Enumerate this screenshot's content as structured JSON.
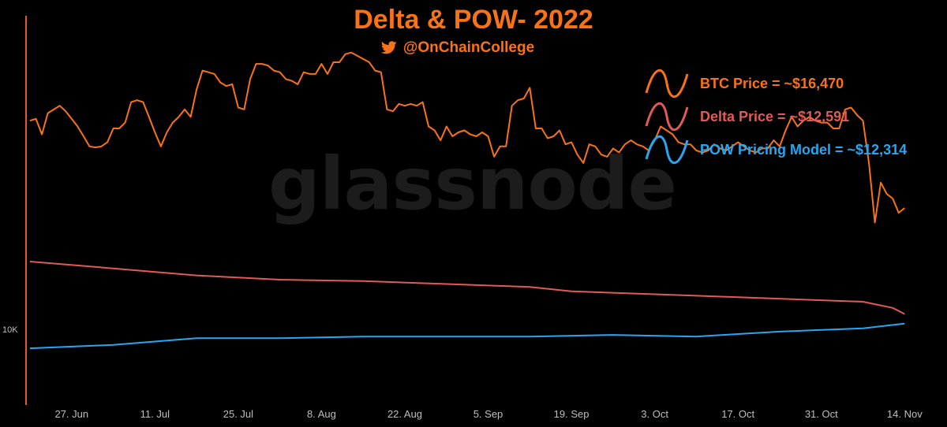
{
  "header": {
    "title": "Delta & POW- 2022",
    "handle": "@OnChainCollege"
  },
  "watermark": "glassnode",
  "legend": [
    {
      "label": "BTC Price = ~$16,470",
      "color": "#f97316"
    },
    {
      "label": "Delta Price = ~$12,591",
      "color": "#e05a57"
    },
    {
      "label": "POW Pricing Model = ~$12,314",
      "color": "#26a7f0"
    }
  ],
  "chart_data": {
    "type": "line",
    "title": "Delta & POW- 2022",
    "xlabel": "",
    "ylabel": "",
    "x_ticks": [
      "27. Jun",
      "11. Jul",
      "25. Jul",
      "8. Aug",
      "22. Aug",
      "5. Sep",
      "19. Sep",
      "3. Oct",
      "17. Oct",
      "31. Oct",
      "14. Nov"
    ],
    "y_ticks": [
      "10K"
    ],
    "y_scale": "log",
    "ylim": [
      10000,
      28000
    ],
    "x_range": [
      "2022-06-20",
      "2022-11-19"
    ],
    "grid": false,
    "legend_position": "top-right",
    "series": [
      {
        "name": "BTC Price",
        "color": "#f97316",
        "points": [
          [
            "2022-06-20",
            20600
          ],
          [
            "2022-06-21",
            20700
          ],
          [
            "2022-06-22",
            19900
          ],
          [
            "2022-06-23",
            21000
          ],
          [
            "2022-06-24",
            21200
          ],
          [
            "2022-06-25",
            21400
          ],
          [
            "2022-06-26",
            21100
          ],
          [
            "2022-06-27",
            20700
          ],
          [
            "2022-06-28",
            20300
          ],
          [
            "2022-06-29",
            19800
          ],
          [
            "2022-06-30",
            19300
          ],
          [
            "2022-07-01",
            19250
          ],
          [
            "2022-07-02",
            19300
          ],
          [
            "2022-07-03",
            19500
          ],
          [
            "2022-07-04",
            20200
          ],
          [
            "2022-07-05",
            20200
          ],
          [
            "2022-07-06",
            20500
          ],
          [
            "2022-07-07",
            21600
          ],
          [
            "2022-07-08",
            21700
          ],
          [
            "2022-07-09",
            21600
          ],
          [
            "2022-07-10",
            20800
          ],
          [
            "2022-07-11",
            20000
          ],
          [
            "2022-07-12",
            19300
          ],
          [
            "2022-07-13",
            20000
          ],
          [
            "2022-07-14",
            20500
          ],
          [
            "2022-07-15",
            20800
          ],
          [
            "2022-07-16",
            21200
          ],
          [
            "2022-07-17",
            20800
          ],
          [
            "2022-07-18",
            22300
          ],
          [
            "2022-07-19",
            23400
          ],
          [
            "2022-07-20",
            23300
          ],
          [
            "2022-07-21",
            23200
          ],
          [
            "2022-07-22",
            22700
          ],
          [
            "2022-07-23",
            22500
          ],
          [
            "2022-07-24",
            22600
          ],
          [
            "2022-07-25",
            21300
          ],
          [
            "2022-07-26",
            21200
          ],
          [
            "2022-07-27",
            22900
          ],
          [
            "2022-07-28",
            23800
          ],
          [
            "2022-07-29",
            23800
          ],
          [
            "2022-07-30",
            23700
          ],
          [
            "2022-07-31",
            23400
          ],
          [
            "2022-08-01",
            23300
          ],
          [
            "2022-08-02",
            22900
          ],
          [
            "2022-08-03",
            22800
          ],
          [
            "2022-08-04",
            22600
          ],
          [
            "2022-08-05",
            23300
          ],
          [
            "2022-08-06",
            23200
          ],
          [
            "2022-08-07",
            23200
          ],
          [
            "2022-08-08",
            23800
          ],
          [
            "2022-08-09",
            23200
          ],
          [
            "2022-08-10",
            23900
          ],
          [
            "2022-08-11",
            23900
          ],
          [
            "2022-08-12",
            24400
          ],
          [
            "2022-08-13",
            24500
          ],
          [
            "2022-08-14",
            24300
          ],
          [
            "2022-08-15",
            24100
          ],
          [
            "2022-08-16",
            23900
          ],
          [
            "2022-08-17",
            23400
          ],
          [
            "2022-08-18",
            23300
          ],
          [
            "2022-08-19",
            21200
          ],
          [
            "2022-08-20",
            21100
          ],
          [
            "2022-08-21",
            21500
          ],
          [
            "2022-08-22",
            21400
          ],
          [
            "2022-08-23",
            21500
          ],
          [
            "2022-08-24",
            21400
          ],
          [
            "2022-08-25",
            21600
          ],
          [
            "2022-08-26",
            20300
          ],
          [
            "2022-08-27",
            20100
          ],
          [
            "2022-08-28",
            19600
          ],
          [
            "2022-08-29",
            20300
          ],
          [
            "2022-08-30",
            19800
          ],
          [
            "2022-08-31",
            20000
          ],
          [
            "2022-09-01",
            20100
          ],
          [
            "2022-09-02",
            19900
          ],
          [
            "2022-09-03",
            19800
          ],
          [
            "2022-09-04",
            20000
          ],
          [
            "2022-09-05",
            19800
          ],
          [
            "2022-09-06",
            18800
          ],
          [
            "2022-09-07",
            19300
          ],
          [
            "2022-09-08",
            19300
          ],
          [
            "2022-09-09",
            21400
          ],
          [
            "2022-09-10",
            21700
          ],
          [
            "2022-09-11",
            21800
          ],
          [
            "2022-09-12",
            22400
          ],
          [
            "2022-09-13",
            20200
          ],
          [
            "2022-09-14",
            20200
          ],
          [
            "2022-09-15",
            19700
          ],
          [
            "2022-09-16",
            19800
          ],
          [
            "2022-09-17",
            20100
          ],
          [
            "2022-09-18",
            19400
          ],
          [
            "2022-09-19",
            19500
          ],
          [
            "2022-09-20",
            18900
          ],
          [
            "2022-09-21",
            18500
          ],
          [
            "2022-09-22",
            19400
          ],
          [
            "2022-09-23",
            19300
          ],
          [
            "2022-09-24",
            18900
          ],
          [
            "2022-09-25",
            18800
          ],
          [
            "2022-09-26",
            19200
          ],
          [
            "2022-09-27",
            19000
          ],
          [
            "2022-09-28",
            19400
          ],
          [
            "2022-09-29",
            19600
          ],
          [
            "2022-09-30",
            19400
          ],
          [
            "2022-10-01",
            19300
          ],
          [
            "2022-10-02",
            19100
          ],
          [
            "2022-10-03",
            19600
          ],
          [
            "2022-10-04",
            20300
          ],
          [
            "2022-10-05",
            20100
          ],
          [
            "2022-10-06",
            19900
          ],
          [
            "2022-10-07",
            19500
          ],
          [
            "2022-10-08",
            19400
          ],
          [
            "2022-10-09",
            19400
          ],
          [
            "2022-10-10",
            19100
          ],
          [
            "2022-10-11",
            19000
          ],
          [
            "2022-10-12",
            19100
          ],
          [
            "2022-10-13",
            19400
          ],
          [
            "2022-10-14",
            19200
          ],
          [
            "2022-10-15",
            19100
          ],
          [
            "2022-10-16",
            19300
          ],
          [
            "2022-10-17",
            19500
          ],
          [
            "2022-10-18",
            19300
          ],
          [
            "2022-10-19",
            19100
          ],
          [
            "2022-10-20",
            19000
          ],
          [
            "2022-10-21",
            19200
          ],
          [
            "2022-10-22",
            19200
          ],
          [
            "2022-10-23",
            19600
          ],
          [
            "2022-10-24",
            19300
          ],
          [
            "2022-10-25",
            20100
          ],
          [
            "2022-10-26",
            20800
          ],
          [
            "2022-10-27",
            20300
          ],
          [
            "2022-10-28",
            20600
          ],
          [
            "2022-10-29",
            20800
          ],
          [
            "2022-10-30",
            20600
          ],
          [
            "2022-10-31",
            20500
          ],
          [
            "2022-11-01",
            20500
          ],
          [
            "2022-11-02",
            20200
          ],
          [
            "2022-11-03",
            20200
          ],
          [
            "2022-11-04",
            21200
          ],
          [
            "2022-11-05",
            21300
          ],
          [
            "2022-11-06",
            20900
          ],
          [
            "2022-11-07",
            20600
          ],
          [
            "2022-11-08",
            18500
          ],
          [
            "2022-11-09",
            15900
          ],
          [
            "2022-11-10",
            17600
          ],
          [
            "2022-11-11",
            17100
          ],
          [
            "2022-11-12",
            16900
          ],
          [
            "2022-11-13",
            16300
          ],
          [
            "2022-11-14",
            16500
          ]
        ]
      },
      {
        "name": "Delta Price",
        "color": "#e05a57",
        "points": [
          [
            "2022-06-20",
            14400
          ],
          [
            "2022-07-04",
            14150
          ],
          [
            "2022-07-18",
            13900
          ],
          [
            "2022-08-01",
            13750
          ],
          [
            "2022-08-15",
            13700
          ],
          [
            "2022-08-29",
            13600
          ],
          [
            "2022-09-12",
            13500
          ],
          [
            "2022-09-19",
            13350
          ],
          [
            "2022-10-03",
            13250
          ],
          [
            "2022-10-17",
            13150
          ],
          [
            "2022-10-31",
            13050
          ],
          [
            "2022-11-07",
            13000
          ],
          [
            "2022-11-12",
            12800
          ],
          [
            "2022-11-14",
            12600
          ]
        ]
      },
      {
        "name": "POW Pricing Model",
        "color": "#26a7f0",
        "points": [
          [
            "2022-06-20",
            11550
          ],
          [
            "2022-07-04",
            11650
          ],
          [
            "2022-07-18",
            11850
          ],
          [
            "2022-08-01",
            11850
          ],
          [
            "2022-08-15",
            11900
          ],
          [
            "2022-08-29",
            11900
          ],
          [
            "2022-09-12",
            11900
          ],
          [
            "2022-09-26",
            11950
          ],
          [
            "2022-10-10",
            11900
          ],
          [
            "2022-10-24",
            12050
          ],
          [
            "2022-11-07",
            12150
          ],
          [
            "2022-11-14",
            12300
          ]
        ]
      }
    ]
  }
}
